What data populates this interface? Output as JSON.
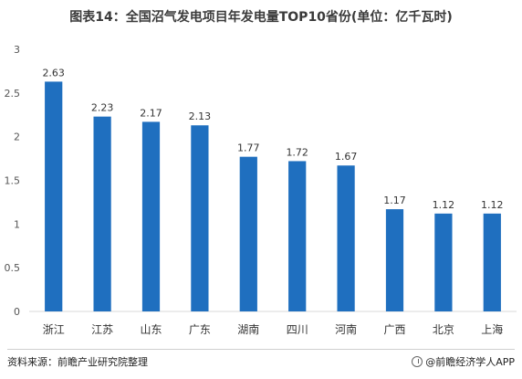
{
  "title": "图表14：全国沼气发电项目年发电量TOP10省份(单位：亿千瓦时)",
  "source": "资料来源：前瞻产业研究院整理",
  "brand": "@前瞻经济学人APP",
  "brand_icon": "circle-logo-icon",
  "colors": {
    "bar": "#1f6fbf",
    "grid": "#d9d9d9"
  },
  "chart_data": {
    "type": "bar",
    "categories": [
      "浙江",
      "江苏",
      "山东",
      "广东",
      "湖南",
      "四川",
      "河南",
      "广西",
      "北京",
      "上海"
    ],
    "values": [
      2.63,
      2.23,
      2.17,
      2.13,
      1.77,
      1.72,
      1.67,
      1.17,
      1.12,
      1.12
    ],
    "value_labels": [
      "2.63",
      "2.23",
      "2.17",
      "2.13",
      "1.77",
      "1.72",
      "1.67",
      "1.17",
      "1.12",
      "1.12"
    ],
    "y_ticks": [
      "0",
      "0.5",
      "1",
      "1.5",
      "2",
      "2.5",
      "3"
    ],
    "ylim": [
      0,
      3
    ],
    "xlabel": "",
    "ylabel": "",
    "grid": false,
    "legend": "none"
  }
}
